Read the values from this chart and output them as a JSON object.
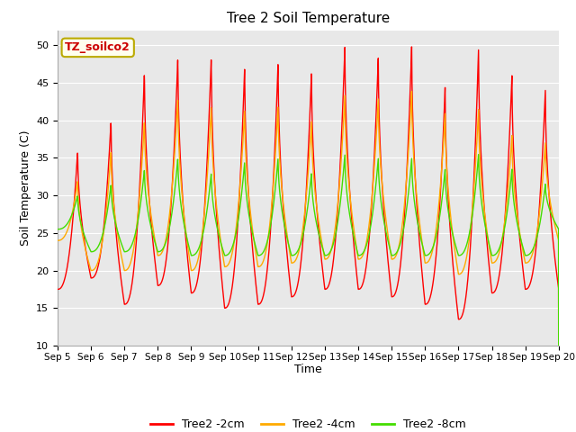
{
  "title": "Tree 2 Soil Temperature",
  "xlabel": "Time",
  "ylabel": "Soil Temperature (C)",
  "ylim": [
    10,
    52
  ],
  "yticks": [
    10,
    15,
    20,
    25,
    30,
    35,
    40,
    45,
    50
  ],
  "bg_color": "#e8e8e8",
  "annotation_text": "TZ_soilco2",
  "annotation_bg": "#ffffee",
  "annotation_border": "#bbaa00",
  "legend_labels": [
    "Tree2 -2cm",
    "Tree2 -4cm",
    "Tree2 -8cm"
  ],
  "line_colors": [
    "#ff0000",
    "#ffaa00",
    "#44dd00"
  ],
  "n_days": 15,
  "x_tick_labels": [
    "Sep 5",
    "Sep 6",
    "Sep 7",
    "Sep 8",
    "Sep 9",
    "Sep 10",
    "Sep 11",
    "Sep 12",
    "Sep 13",
    "Sep 14",
    "Sep 15",
    "Sep 16",
    "Sep 17",
    "Sep 18",
    "Sep 19",
    "Sep 20"
  ],
  "red_peaks": [
    36,
    40,
    46.5,
    48.5,
    48.5,
    47.2,
    47.8,
    46.5,
    50,
    48.5,
    50,
    44.5,
    49.5,
    46,
    44
  ],
  "red_troughs": [
    17.5,
    19,
    15.5,
    18,
    17,
    15,
    15.5,
    16.5,
    17.5,
    17.5,
    16.5,
    15.5,
    13.5,
    17,
    17.5
  ],
  "orange_peaks": [
    32,
    36,
    40,
    43,
    42,
    41.5,
    42,
    40,
    43.5,
    43,
    44,
    41,
    41.5,
    38,
    37
  ],
  "orange_troughs": [
    24,
    20,
    20,
    22,
    20,
    20.5,
    20.5,
    21,
    21.5,
    21.5,
    21.5,
    21,
    19.5,
    21,
    21
  ],
  "green_peaks": [
    30,
    31.5,
    33.5,
    35,
    33,
    34.5,
    35,
    33,
    35.5,
    35,
    35,
    33.5,
    35.5,
    33.5,
    31.5
  ],
  "green_troughs": [
    25.5,
    22.5,
    22.5,
    22.5,
    22,
    22,
    22,
    22,
    22,
    22,
    22,
    22,
    22,
    22,
    22
  ]
}
